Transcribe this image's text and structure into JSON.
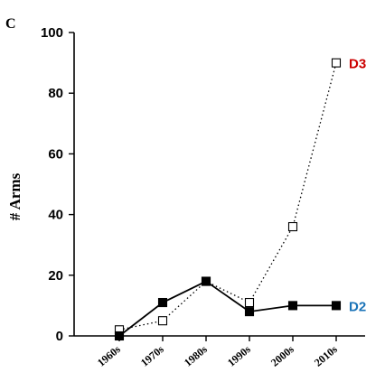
{
  "panel_label": "C",
  "chart_data": {
    "type": "line",
    "title": "",
    "xlabel": "",
    "ylabel": "# Arms",
    "ylim": [
      0,
      100
    ],
    "yticks": [
      0,
      20,
      40,
      60,
      80,
      100
    ],
    "grid": false,
    "categories": [
      "1960s",
      "1970s",
      "1980s",
      "1990s",
      "2000s",
      "2010s"
    ],
    "series": [
      {
        "name": "D3",
        "values": [
          2,
          5,
          18,
          11,
          36,
          90
        ],
        "color": "#cc0000",
        "line_style": "dotted",
        "marker": "open-square"
      },
      {
        "name": "D2",
        "values": [
          0,
          11,
          18,
          8,
          10,
          10
        ],
        "color": "#1a73b8",
        "line_style": "solid",
        "marker": "filled-square"
      }
    ]
  }
}
